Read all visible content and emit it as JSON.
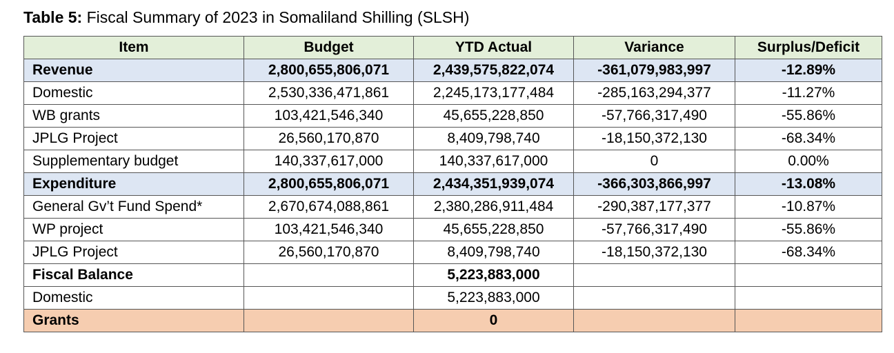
{
  "caption": {
    "label": "Table 5:",
    "title": "Fiscal Summary of 2023 in Somaliland Shilling (SLSH)"
  },
  "columns": [
    "Item",
    "Budget",
    "YTD Actual",
    "Variance",
    "Surplus/Deficit"
  ],
  "rows": [
    {
      "type": "summary",
      "cells": [
        "Revenue",
        "2,800,655,806,071",
        "2,439,575,822,074",
        "-361,079,983,997",
        "-12.89%"
      ]
    },
    {
      "type": "normal",
      "cells": [
        "Domestic",
        "2,530,336,471,861",
        "2,245,173,177,484",
        "-285,163,294,377",
        "-11.27%"
      ]
    },
    {
      "type": "normal",
      "cells": [
        "WB grants",
        "103,421,546,340",
        "45,655,228,850",
        "-57,766,317,490",
        "-55.86%"
      ]
    },
    {
      "type": "normal",
      "cells": [
        "JPLG Project",
        "26,560,170,870",
        "8,409,798,740",
        "-18,150,372,130",
        "-68.34%"
      ]
    },
    {
      "type": "normal",
      "cells": [
        "Supplementary budget",
        "140,337,617,000",
        "140,337,617,000",
        "0",
        "0.00%"
      ]
    },
    {
      "type": "summary",
      "cells": [
        "Expenditure",
        "2,800,655,806,071",
        "2,434,351,939,074",
        "-366,303,866,997",
        "-13.08%"
      ]
    },
    {
      "type": "normal",
      "cells": [
        "General Gv’t Fund Spend*",
        "2,670,674,088,861",
        "2,380,286,911,484",
        "-290,387,177,377",
        "-10.87%"
      ]
    },
    {
      "type": "normal",
      "cells": [
        "WP project",
        "103,421,546,340",
        "45,655,228,850",
        "-57,766,317,490",
        "-55.86%"
      ]
    },
    {
      "type": "normal",
      "cells": [
        "JPLG Project",
        "26,560,170,870",
        "8,409,798,740",
        "-18,150,372,130",
        "-68.34%"
      ]
    },
    {
      "type": "balance",
      "cells": [
        "Fiscal Balance",
        "",
        "5,223,883,000",
        "",
        ""
      ]
    },
    {
      "type": "normal",
      "cells": [
        "Domestic",
        "",
        "5,223,883,000",
        "",
        ""
      ]
    },
    {
      "type": "grants",
      "cells": [
        "Grants",
        "",
        "0",
        "",
        ""
      ]
    }
  ],
  "colors": {
    "header_bg": "#e3efd9",
    "summary_bg": "#dde6f3",
    "grants_bg": "#f6cdb0"
  }
}
